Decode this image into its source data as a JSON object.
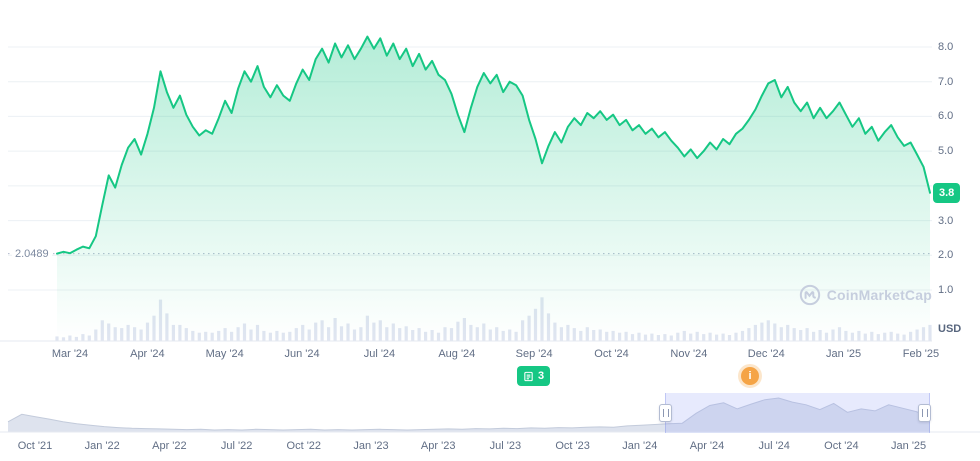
{
  "watermark": {
    "label": "CoinMarketCap"
  },
  "event_badges": {
    "news": {
      "count": "3",
      "color": "#16C784"
    },
    "info": {
      "label": "i",
      "color": "#F5A446"
    }
  },
  "chart_data": [
    {
      "type": "area",
      "name": "price",
      "title": "",
      "y_unit": "USD",
      "ylim": [
        0,
        8.8
      ],
      "line_color": "#16C784",
      "grid": true,
      "legend": "none",
      "y_tick_labels": [
        {
          "value": 8.0,
          "label": "8.0"
        },
        {
          "value": 7.0,
          "label": "7.0"
        },
        {
          "value": 6.0,
          "label": "6.0"
        },
        {
          "value": 5.0,
          "label": "5.0"
        },
        {
          "value": 4.0,
          "label": ""
        },
        {
          "value": 3.0,
          "label": "3.0"
        },
        {
          "value": 2.0,
          "label": "2.0"
        },
        {
          "value": 1.0,
          "label": "1.0"
        }
      ],
      "x_tick_labels": [
        "Mar '24",
        "Apr '24",
        "May '24",
        "Jun '24",
        "Jul '24",
        "Aug '24",
        "Sep '24",
        "Oct '24",
        "Nov '24",
        "Dec '24",
        "Jan '25",
        "Feb '25"
      ],
      "min_annotation": {
        "label": "2.0489",
        "value": 2.0489
      },
      "current_price": {
        "label": "3.8",
        "value": 3.8
      },
      "values": [
        2.05,
        2.1,
        2.06,
        2.16,
        2.25,
        2.2,
        2.55,
        3.45,
        4.3,
        3.95,
        4.6,
        5.1,
        5.35,
        4.9,
        5.5,
        6.25,
        7.3,
        6.7,
        6.25,
        6.6,
        6.05,
        5.7,
        5.45,
        5.6,
        5.5,
        5.95,
        6.45,
        6.1,
        6.8,
        7.3,
        7.0,
        7.45,
        6.85,
        6.55,
        6.9,
        6.6,
        6.45,
        6.95,
        7.35,
        7.05,
        7.65,
        7.95,
        7.55,
        8.1,
        7.7,
        8.05,
        7.65,
        7.95,
        8.3,
        7.95,
        8.25,
        7.75,
        8.1,
        7.65,
        7.95,
        7.45,
        7.8,
        7.35,
        7.6,
        7.2,
        7.05,
        6.65,
        6.05,
        5.55,
        6.25,
        6.85,
        7.25,
        6.95,
        7.2,
        6.7,
        7.0,
        6.9,
        6.6,
        5.9,
        5.35,
        4.65,
        5.15,
        5.55,
        5.25,
        5.7,
        5.95,
        5.75,
        6.1,
        5.95,
        6.15,
        5.9,
        6.05,
        5.75,
        5.9,
        5.6,
        5.75,
        5.5,
        5.65,
        5.4,
        5.55,
        5.3,
        5.1,
        4.85,
        5.05,
        4.8,
        5.0,
        5.25,
        5.05,
        5.35,
        5.2,
        5.5,
        5.65,
        5.9,
        6.2,
        6.6,
        6.95,
        7.05,
        6.55,
        6.85,
        6.4,
        6.15,
        6.4,
        5.95,
        6.25,
        5.95,
        6.15,
        6.4,
        6.05,
        5.7,
        5.95,
        5.5,
        5.7,
        5.3,
        5.55,
        5.75,
        5.4,
        5.15,
        5.25,
        4.9,
        4.55,
        3.8
      ]
    },
    {
      "type": "bar",
      "name": "volume",
      "color": "#E0E5F1",
      "values_norm": [
        0.1,
        0.08,
        0.12,
        0.09,
        0.15,
        0.12,
        0.25,
        0.45,
        0.38,
        0.3,
        0.28,
        0.35,
        0.3,
        0.25,
        0.4,
        0.55,
        0.9,
        0.6,
        0.35,
        0.35,
        0.28,
        0.22,
        0.18,
        0.2,
        0.18,
        0.22,
        0.28,
        0.2,
        0.3,
        0.38,
        0.25,
        0.35,
        0.22,
        0.18,
        0.22,
        0.18,
        0.2,
        0.28,
        0.35,
        0.25,
        0.4,
        0.45,
        0.3,
        0.5,
        0.32,
        0.38,
        0.25,
        0.3,
        0.55,
        0.4,
        0.45,
        0.3,
        0.38,
        0.28,
        0.32,
        0.24,
        0.28,
        0.2,
        0.24,
        0.18,
        0.3,
        0.28,
        0.42,
        0.5,
        0.35,
        0.3,
        0.38,
        0.25,
        0.3,
        0.22,
        0.25,
        0.2,
        0.45,
        0.55,
        0.7,
        0.95,
        0.6,
        0.4,
        0.3,
        0.35,
        0.28,
        0.22,
        0.3,
        0.24,
        0.25,
        0.2,
        0.22,
        0.18,
        0.2,
        0.15,
        0.18,
        0.14,
        0.16,
        0.13,
        0.15,
        0.12,
        0.18,
        0.22,
        0.16,
        0.2,
        0.15,
        0.18,
        0.14,
        0.16,
        0.13,
        0.18,
        0.22,
        0.28,
        0.35,
        0.4,
        0.45,
        0.38,
        0.3,
        0.35,
        0.28,
        0.24,
        0.28,
        0.2,
        0.24,
        0.18,
        0.25,
        0.3,
        0.22,
        0.18,
        0.22,
        0.16,
        0.2,
        0.15,
        0.18,
        0.2,
        0.16,
        0.14,
        0.2,
        0.25,
        0.3,
        0.35
      ]
    },
    {
      "type": "area",
      "name": "navigator",
      "color": "#DEE3EE",
      "x_tick_labels": [
        "Oct '21",
        "Jan '22",
        "Apr '22",
        "Jul '22",
        "Oct '22",
        "Jan '23",
        "Apr '23",
        "Jul '23",
        "Oct '23",
        "Jan '24",
        "Apr '24",
        "Jul '24",
        "Oct '24",
        "Jan '25"
      ],
      "selection_frac": [
        0.713,
        1.0
      ],
      "values_norm": [
        0.3,
        0.52,
        0.45,
        0.38,
        0.3,
        0.24,
        0.2,
        0.16,
        0.13,
        0.11,
        0.1,
        0.09,
        0.08,
        0.07,
        0.08,
        0.06,
        0.07,
        0.06,
        0.08,
        0.07,
        0.06,
        0.07,
        0.08,
        0.06,
        0.07,
        0.06,
        0.07,
        0.08,
        0.07,
        0.06,
        0.07,
        0.08,
        0.09,
        0.08,
        0.1,
        0.09,
        0.11,
        0.1,
        0.12,
        0.11,
        0.13,
        0.12,
        0.14,
        0.15,
        0.14,
        0.18,
        0.2,
        0.22,
        0.24,
        0.26,
        0.55,
        0.78,
        0.86,
        0.68,
        0.82,
        0.95,
        1.0,
        0.88,
        0.8,
        0.66,
        0.84,
        0.58,
        0.68,
        0.62,
        0.8,
        0.7,
        0.6,
        0.45
      ]
    }
  ]
}
